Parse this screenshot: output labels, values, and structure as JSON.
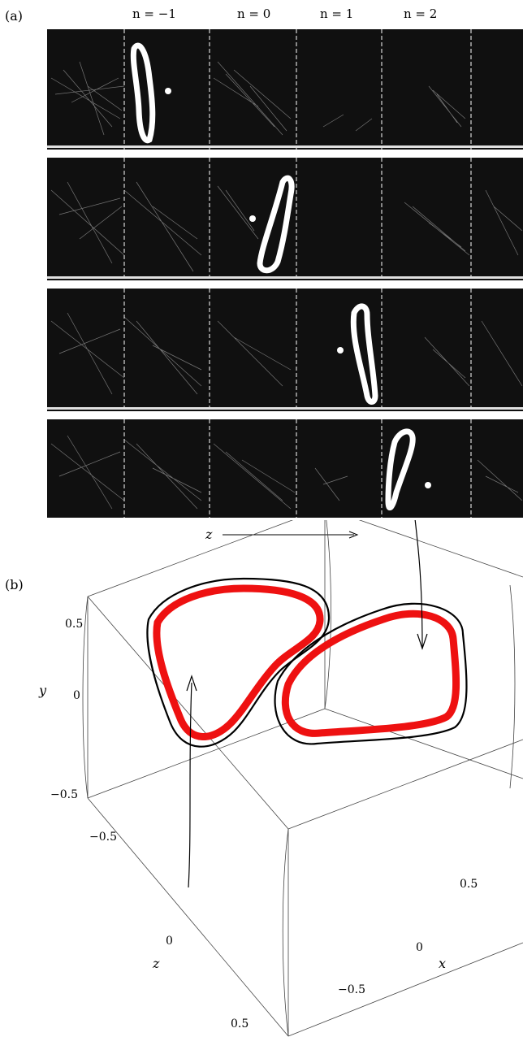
{
  "panel_a": {
    "label": "(a)",
    "columns": [
      "n = −1",
      "n = 0",
      "n = 1",
      "n = 2"
    ],
    "axis_label": "z"
  },
  "panel_b": {
    "label": "(b)",
    "axes": {
      "x": "x",
      "y": "y",
      "z": "z"
    },
    "y_ticks": [
      "0.5",
      "0",
      "−0.5"
    ],
    "z_ticks": [
      "−0.5",
      "0",
      "0.5"
    ],
    "x_ticks": [
      "0.5",
      "0",
      "−0.5"
    ]
  }
}
